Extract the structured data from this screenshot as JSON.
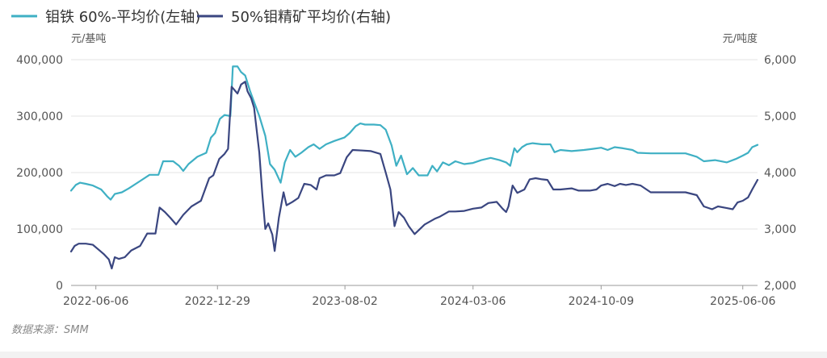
{
  "chart_data": {
    "type": "line",
    "legend": {
      "placement": "top-left"
    },
    "source": "数据来源：SMM",
    "left_unit": "元/基吨",
    "right_unit": "元/吨度",
    "x_tick_labels": [
      "2022-06-06",
      "2022-12-29",
      "2023-08-02",
      "2024-03-06",
      "2024-10-09",
      "2025-06-06"
    ],
    "x_range": [
      "2022-04-25",
      "2025-07-01"
    ],
    "y_left": {
      "min": 0,
      "max": 400000,
      "ticks": [
        0,
        100000,
        200000,
        300000,
        400000
      ],
      "tick_labels": [
        "0",
        "100,000",
        "200,000",
        "300,000",
        "400,000"
      ]
    },
    "y_right": {
      "min": 2000,
      "max": 6000,
      "ticks": [
        2000,
        3000,
        4000,
        5000,
        6000
      ],
      "tick_labels": [
        "2,000",
        "3,000",
        "4,000",
        "5,000",
        "6,000"
      ]
    },
    "grid": true,
    "series": [
      {
        "name": "钼铁 60%-平均价(左轴)",
        "axis": "left",
        "color": "#3fb0c4",
        "points": [
          [
            "2022-04-25",
            168000
          ],
          [
            "2022-05-03",
            178000
          ],
          [
            "2022-05-10",
            182000
          ],
          [
            "2022-05-20",
            180000
          ],
          [
            "2022-06-01",
            177000
          ],
          [
            "2022-06-15",
            170000
          ],
          [
            "2022-06-25",
            158000
          ],
          [
            "2022-07-01",
            152000
          ],
          [
            "2022-07-08",
            162000
          ],
          [
            "2022-07-20",
            165000
          ],
          [
            "2022-08-01",
            172000
          ],
          [
            "2022-08-20",
            185000
          ],
          [
            "2022-09-05",
            196000
          ],
          [
            "2022-09-20",
            196000
          ],
          [
            "2022-09-28",
            220000
          ],
          [
            "2022-10-15",
            220000
          ],
          [
            "2022-10-25",
            212000
          ],
          [
            "2022-11-01",
            203000
          ],
          [
            "2022-11-10",
            215000
          ],
          [
            "2022-11-25",
            228000
          ],
          [
            "2022-12-10",
            235000
          ],
          [
            "2022-12-18",
            262000
          ],
          [
            "2022-12-25",
            270000
          ],
          [
            "2023-01-02",
            295000
          ],
          [
            "2023-01-10",
            302000
          ],
          [
            "2023-01-20",
            300000
          ],
          [
            "2023-01-24",
            388000
          ],
          [
            "2023-02-01",
            388000
          ],
          [
            "2023-02-07",
            378000
          ],
          [
            "2023-02-14",
            372000
          ],
          [
            "2023-02-22",
            345000
          ],
          [
            "2023-03-01",
            325000
          ],
          [
            "2023-03-10",
            300000
          ],
          [
            "2023-03-20",
            265000
          ],
          [
            "2023-03-28",
            215000
          ],
          [
            "2023-04-05",
            205000
          ],
          [
            "2023-04-15",
            182000
          ],
          [
            "2023-04-22",
            218000
          ],
          [
            "2023-05-01",
            240000
          ],
          [
            "2023-05-10",
            228000
          ],
          [
            "2023-05-20",
            235000
          ],
          [
            "2023-06-01",
            245000
          ],
          [
            "2023-06-10",
            250000
          ],
          [
            "2023-06-20",
            242000
          ],
          [
            "2023-07-01",
            250000
          ],
          [
            "2023-07-15",
            256000
          ],
          [
            "2023-08-01",
            262000
          ],
          [
            "2023-08-10",
            270000
          ],
          [
            "2023-08-20",
            282000
          ],
          [
            "2023-08-28",
            287000
          ],
          [
            "2023-09-05",
            285000
          ],
          [
            "2023-09-20",
            285000
          ],
          [
            "2023-10-01",
            284000
          ],
          [
            "2023-10-10",
            276000
          ],
          [
            "2023-10-20",
            248000
          ],
          [
            "2023-10-28",
            212000
          ],
          [
            "2023-11-05",
            230000
          ],
          [
            "2023-11-15",
            197000
          ],
          [
            "2023-11-25",
            208000
          ],
          [
            "2023-12-05",
            195000
          ],
          [
            "2023-12-20",
            195000
          ],
          [
            "2023-12-28",
            212000
          ],
          [
            "2024-01-05",
            202000
          ],
          [
            "2024-01-15",
            218000
          ],
          [
            "2024-01-25",
            213000
          ],
          [
            "2024-02-05",
            220000
          ],
          [
            "2024-02-20",
            215000
          ],
          [
            "2024-03-06",
            217000
          ],
          [
            "2024-03-20",
            222000
          ],
          [
            "2024-04-05",
            226000
          ],
          [
            "2024-04-20",
            222000
          ],
          [
            "2024-05-01",
            218000
          ],
          [
            "2024-05-08",
            212000
          ],
          [
            "2024-05-12",
            230000
          ],
          [
            "2024-05-15",
            243000
          ],
          [
            "2024-05-20",
            236000
          ],
          [
            "2024-05-28",
            245000
          ],
          [
            "2024-06-05",
            250000
          ],
          [
            "2024-06-15",
            252000
          ],
          [
            "2024-07-01",
            250000
          ],
          [
            "2024-07-15",
            250000
          ],
          [
            "2024-07-22",
            236000
          ],
          [
            "2024-08-01",
            240000
          ],
          [
            "2024-08-20",
            238000
          ],
          [
            "2024-09-10",
            240000
          ],
          [
            "2024-09-25",
            242000
          ],
          [
            "2024-10-09",
            244000
          ],
          [
            "2024-10-20",
            240000
          ],
          [
            "2024-11-01",
            245000
          ],
          [
            "2024-11-15",
            243000
          ],
          [
            "2024-12-01",
            240000
          ],
          [
            "2024-12-10",
            235000
          ],
          [
            "2025-01-01",
            234000
          ],
          [
            "2025-02-01",
            234000
          ],
          [
            "2025-03-01",
            234000
          ],
          [
            "2025-03-20",
            228000
          ],
          [
            "2025-04-01",
            220000
          ],
          [
            "2025-04-20",
            222000
          ],
          [
            "2025-05-10",
            218000
          ],
          [
            "2025-05-25",
            224000
          ],
          [
            "2025-06-06",
            230000
          ],
          [
            "2025-06-15",
            235000
          ],
          [
            "2025-06-22",
            245000
          ],
          [
            "2025-07-01",
            249000
          ]
        ]
      },
      {
        "name": "50%钼精矿平均价(右轴)",
        "axis": "right",
        "color": "#3a4680",
        "points": [
          [
            "2022-04-25",
            2600
          ],
          [
            "2022-05-01",
            2700
          ],
          [
            "2022-05-08",
            2740
          ],
          [
            "2022-05-20",
            2740
          ],
          [
            "2022-06-01",
            2720
          ],
          [
            "2022-06-10",
            2640
          ],
          [
            "2022-06-20",
            2550
          ],
          [
            "2022-06-28",
            2460
          ],
          [
            "2022-07-03",
            2300
          ],
          [
            "2022-07-08",
            2500
          ],
          [
            "2022-07-15",
            2470
          ],
          [
            "2022-07-25",
            2500
          ],
          [
            "2022-08-05",
            2620
          ],
          [
            "2022-08-20",
            2700
          ],
          [
            "2022-09-01",
            2920
          ],
          [
            "2022-09-15",
            2920
          ],
          [
            "2022-09-22",
            3380
          ],
          [
            "2022-10-01",
            3300
          ],
          [
            "2022-10-10",
            3200
          ],
          [
            "2022-10-20",
            3080
          ],
          [
            "2022-11-01",
            3250
          ],
          [
            "2022-11-15",
            3400
          ],
          [
            "2022-12-01",
            3500
          ],
          [
            "2022-12-08",
            3700
          ],
          [
            "2022-12-15",
            3900
          ],
          [
            "2022-12-22",
            3950
          ],
          [
            "2023-01-01",
            4240
          ],
          [
            "2023-01-10",
            4330
          ],
          [
            "2023-01-16",
            4420
          ],
          [
            "2023-01-22",
            5520
          ],
          [
            "2023-02-01",
            5400
          ],
          [
            "2023-02-07",
            5560
          ],
          [
            "2023-02-14",
            5610
          ],
          [
            "2023-02-18",
            5440
          ],
          [
            "2023-02-24",
            5320
          ],
          [
            "2023-03-01",
            5150
          ],
          [
            "2023-03-10",
            4350
          ],
          [
            "2023-03-15",
            3620
          ],
          [
            "2023-03-20",
            3000
          ],
          [
            "2023-03-25",
            3100
          ],
          [
            "2023-04-01",
            2900
          ],
          [
            "2023-04-05",
            2610
          ],
          [
            "2023-04-12",
            3200
          ],
          [
            "2023-04-20",
            3650
          ],
          [
            "2023-04-25",
            3420
          ],
          [
            "2023-05-05",
            3480
          ],
          [
            "2023-05-15",
            3550
          ],
          [
            "2023-05-25",
            3800
          ],
          [
            "2023-06-05",
            3780
          ],
          [
            "2023-06-15",
            3700
          ],
          [
            "2023-06-20",
            3900
          ],
          [
            "2023-07-01",
            3950
          ],
          [
            "2023-07-15",
            3950
          ],
          [
            "2023-07-25",
            3990
          ],
          [
            "2023-08-05",
            4270
          ],
          [
            "2023-08-15",
            4400
          ],
          [
            "2023-09-01",
            4390
          ],
          [
            "2023-09-15",
            4380
          ],
          [
            "2023-10-01",
            4330
          ],
          [
            "2023-10-10",
            4000
          ],
          [
            "2023-10-18",
            3700
          ],
          [
            "2023-10-25",
            3050
          ],
          [
            "2023-11-01",
            3300
          ],
          [
            "2023-11-10",
            3200
          ],
          [
            "2023-11-18",
            3050
          ],
          [
            "2023-11-28",
            2910
          ],
          [
            "2023-12-05",
            2980
          ],
          [
            "2023-12-15",
            3080
          ],
          [
            "2024-01-01",
            3180
          ],
          [
            "2024-01-10",
            3220
          ],
          [
            "2024-01-25",
            3310
          ],
          [
            "2024-02-05",
            3310
          ],
          [
            "2024-02-20",
            3320
          ],
          [
            "2024-03-06",
            3360
          ],
          [
            "2024-03-20",
            3380
          ],
          [
            "2024-04-01",
            3460
          ],
          [
            "2024-04-15",
            3480
          ],
          [
            "2024-04-25",
            3360
          ],
          [
            "2024-05-01",
            3300
          ],
          [
            "2024-05-05",
            3400
          ],
          [
            "2024-05-12",
            3770
          ],
          [
            "2024-05-20",
            3640
          ],
          [
            "2024-06-01",
            3700
          ],
          [
            "2024-06-10",
            3880
          ],
          [
            "2024-06-20",
            3900
          ],
          [
            "2024-07-01",
            3880
          ],
          [
            "2024-07-10",
            3870
          ],
          [
            "2024-07-20",
            3700
          ],
          [
            "2024-08-01",
            3700
          ],
          [
            "2024-08-20",
            3720
          ],
          [
            "2024-09-01",
            3680
          ],
          [
            "2024-09-20",
            3680
          ],
          [
            "2024-10-01",
            3700
          ],
          [
            "2024-10-09",
            3770
          ],
          [
            "2024-10-20",
            3800
          ],
          [
            "2024-11-01",
            3760
          ],
          [
            "2024-11-10",
            3800
          ],
          [
            "2024-11-20",
            3780
          ],
          [
            "2024-12-01",
            3800
          ],
          [
            "2024-12-15",
            3770
          ],
          [
            "2025-01-01",
            3650
          ],
          [
            "2025-02-01",
            3650
          ],
          [
            "2025-03-01",
            3650
          ],
          [
            "2025-03-20",
            3600
          ],
          [
            "2025-04-01",
            3400
          ],
          [
            "2025-04-15",
            3350
          ],
          [
            "2025-04-25",
            3400
          ],
          [
            "2025-05-10",
            3370
          ],
          [
            "2025-05-20",
            3350
          ],
          [
            "2025-05-28",
            3470
          ],
          [
            "2025-06-06",
            3500
          ],
          [
            "2025-06-15",
            3560
          ],
          [
            "2025-06-22",
            3700
          ],
          [
            "2025-07-01",
            3870
          ]
        ]
      }
    ]
  }
}
